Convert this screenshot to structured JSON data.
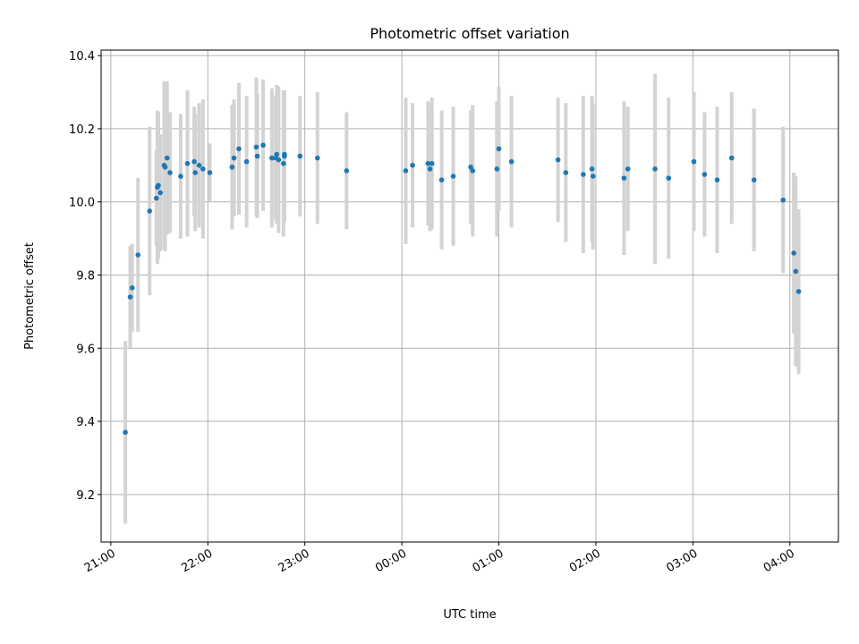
{
  "chart_data": {
    "type": "scatter",
    "title": "Photometric offset variation",
    "xlabel": "UTC time",
    "ylabel": "Photometric offset",
    "x_ticks": [
      "21:00",
      "22:00",
      "23:00",
      "00:00",
      "01:00",
      "02:00",
      "03:00",
      "04:00"
    ],
    "y_ticks": [
      "9.2",
      "9.4",
      "9.6",
      "9.8",
      "10.0",
      "10.2",
      "10.4"
    ],
    "xlim_hours": [
      20.9,
      28.5
    ],
    "ylim": [
      9.07,
      10.415
    ],
    "grid": true,
    "marker_color": "#1f77b4",
    "errorbar_color": "#d3d3d3",
    "x_hours": [
      21.15,
      21.2,
      21.22,
      21.28,
      21.4,
      21.47,
      21.48,
      21.49,
      21.51,
      21.55,
      21.56,
      21.58,
      21.61,
      21.72,
      21.79,
      21.86,
      21.87,
      21.91,
      21.95,
      22.02,
      22.25,
      22.27,
      22.32,
      22.4,
      22.5,
      22.51,
      22.57,
      22.66,
      22.7,
      22.71,
      22.73,
      22.78,
      22.79,
      22.79,
      22.95,
      23.13,
      23.43,
      24.04,
      24.11,
      24.27,
      24.29,
      24.31,
      24.41,
      24.53,
      24.71,
      24.73,
      24.98,
      25.0,
      25.13,
      25.61,
      25.69,
      25.87,
      25.96,
      25.97,
      26.29,
      26.33,
      26.61,
      26.75,
      27.01,
      27.12,
      27.25,
      27.4,
      27.63,
      27.93,
      28.04,
      28.06,
      28.09
    ],
    "y_values": [
      9.37,
      9.74,
      9.765,
      9.855,
      9.975,
      10.01,
      10.04,
      10.045,
      10.025,
      10.1,
      10.095,
      10.12,
      10.08,
      10.07,
      10.105,
      10.11,
      10.08,
      10.1,
      10.09,
      10.08,
      10.095,
      10.12,
      10.145,
      10.11,
      10.15,
      10.125,
      10.155,
      10.12,
      10.12,
      10.13,
      10.115,
      10.105,
      10.13,
      10.125,
      10.125,
      10.12,
      10.085,
      10.085,
      10.1,
      10.105,
      10.09,
      10.105,
      10.06,
      10.07,
      10.095,
      10.085,
      10.09,
      10.145,
      10.11,
      10.115,
      10.08,
      10.075,
      10.09,
      10.07,
      10.065,
      10.09,
      10.09,
      10.065,
      10.11,
      10.075,
      10.06,
      10.12,
      10.06,
      10.005,
      9.86,
      9.81,
      9.755
    ],
    "y_err": [
      0.25,
      0.14,
      0.12,
      0.21,
      0.23,
      0.13,
      0.21,
      0.2,
      0.16,
      0.23,
      0.23,
      0.21,
      0.165,
      0.17,
      0.2,
      0.15,
      0.16,
      0.17,
      0.19,
      0.08,
      0.17,
      0.16,
      0.18,
      0.18,
      0.19,
      0.17,
      0.18,
      0.19,
      0.17,
      0.19,
      0.2,
      0.2,
      0.17,
      0.18,
      0.165,
      0.18,
      0.16,
      0.2,
      0.17,
      0.17,
      0.17,
      0.18,
      0.19,
      0.19,
      0.155,
      0.18,
      0.185,
      0.17,
      0.18,
      0.17,
      0.19,
      0.215,
      0.2,
      0.2,
      0.21,
      0.17,
      0.26,
      0.22,
      0.19,
      0.17,
      0.2,
      0.18,
      0.195,
      0.2,
      0.22,
      0.26,
      0.225
    ]
  }
}
